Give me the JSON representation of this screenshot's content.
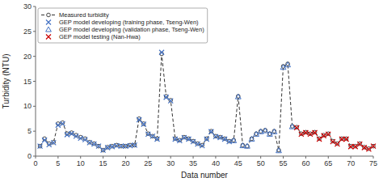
{
  "chart_data": {
    "type": "line",
    "xlabel": "Data number",
    "ylabel": "Turbidity (NTU)",
    "xlim": [
      0,
      75
    ],
    "ylim": [
      0,
      30
    ],
    "xticks": [
      0,
      5,
      10,
      15,
      20,
      25,
      30,
      35,
      40,
      45,
      50,
      55,
      60,
      65,
      70,
      75
    ],
    "yticks": [
      0,
      5,
      10,
      15,
      20,
      25,
      30
    ],
    "grid": false,
    "legend": "upper left",
    "series": [
      {
        "name": "Measured turbidity",
        "type": "line",
        "color": "#333333",
        "marker": "circle",
        "line_style": "dashed",
        "x": [
          1,
          2,
          3,
          4,
          5,
          6,
          7,
          8,
          9,
          10,
          11,
          12,
          13,
          14,
          15,
          16,
          17,
          18,
          19,
          20,
          21,
          22,
          23,
          24,
          25,
          26,
          27,
          28,
          29,
          30,
          31,
          32,
          33,
          34,
          35,
          36,
          37,
          38,
          39,
          40,
          41,
          42,
          43,
          44,
          45,
          46,
          47,
          48,
          49,
          50,
          51,
          52,
          53,
          54,
          55,
          56,
          57,
          58,
          59,
          60,
          61,
          62,
          63,
          64,
          65,
          66,
          67,
          68,
          69,
          70,
          71,
          72,
          73,
          74,
          75
        ],
        "values": [
          2.0,
          3.5,
          2.5,
          2.8,
          6.5,
          6.7,
          4.5,
          4.7,
          4.2,
          3.8,
          3.5,
          2.8,
          2.5,
          2.0,
          1.2,
          1.8,
          2.0,
          2.2,
          2.0,
          2.0,
          2.2,
          2.2,
          7.5,
          6.5,
          4.5,
          4.0,
          3.5,
          20.5,
          12.0,
          11.2,
          3.5,
          3.2,
          3.8,
          3.5,
          3.0,
          2.5,
          2.2,
          3.5,
          5.0,
          4.0,
          3.8,
          3.5,
          3.0,
          3.2,
          12.0,
          2.2,
          2.0,
          3.5,
          4.5,
          5.0,
          5.2,
          4.5,
          5.0,
          1.2,
          18.0,
          18.5,
          6.0,
          5.8,
          4.5,
          4.8,
          4.5,
          4.8,
          3.5,
          4.2,
          4.5,
          3.0,
          2.5,
          3.5,
          3.5,
          2.0,
          2.0,
          2.5,
          1.8,
          1.5,
          2.0
        ]
      },
      {
        "name": "GEP model developing (training phase, Tseng-Wen)",
        "type": "scatter",
        "color": "#4472c4",
        "marker": "x",
        "line_style": "none",
        "x": [
          1,
          2,
          3,
          4,
          5,
          6,
          7,
          8,
          9,
          10,
          11,
          12,
          13,
          14,
          15,
          16,
          17,
          18,
          19,
          20,
          21,
          22,
          23,
          24,
          25,
          26,
          27,
          28,
          29,
          30,
          31,
          32,
          33,
          34,
          35,
          36,
          37,
          38,
          39,
          40,
          41,
          42,
          43
        ],
        "values": [
          2.0,
          3.2,
          2.3,
          2.7,
          6.2,
          6.5,
          4.3,
          4.5,
          4.0,
          3.6,
          3.3,
          2.7,
          2.4,
          2.0,
          1.2,
          1.7,
          1.9,
          2.1,
          2.0,
          2.0,
          2.1,
          2.2,
          7.3,
          6.4,
          4.4,
          4.0,
          3.4,
          20.8,
          11.8,
          11.1,
          3.4,
          3.1,
          3.7,
          3.4,
          2.9,
          2.4,
          2.1,
          3.4,
          4.9,
          3.9,
          3.7,
          3.4,
          2.9
        ]
      },
      {
        "name": "GEP model developing (validation phase, Tseng-Wen)",
        "type": "scatter",
        "color": "#4472c4",
        "marker": "triangle",
        "line_style": "none",
        "x": [
          44,
          45,
          46,
          47,
          48,
          49,
          50,
          51,
          52,
          53,
          54,
          55,
          56,
          57
        ],
        "values": [
          3.1,
          11.9,
          2.1,
          2.0,
          3.4,
          4.4,
          4.9,
          5.1,
          4.4,
          4.9,
          1.1,
          17.8,
          18.3,
          5.9
        ]
      },
      {
        "name": "GEP model testing (Nan-Hwa)",
        "type": "scatter",
        "color": "#cc0000",
        "marker": "x",
        "line_style": "none",
        "x": [
          58,
          59,
          60,
          61,
          62,
          63,
          64,
          65,
          66,
          67,
          68,
          69,
          70,
          71,
          72,
          73,
          74,
          75
        ],
        "values": [
          5.7,
          4.4,
          4.7,
          4.4,
          4.7,
          3.4,
          4.1,
          4.4,
          2.9,
          2.4,
          3.4,
          3.4,
          1.9,
          1.9,
          2.4,
          1.7,
          1.4,
          2.0
        ]
      }
    ]
  }
}
